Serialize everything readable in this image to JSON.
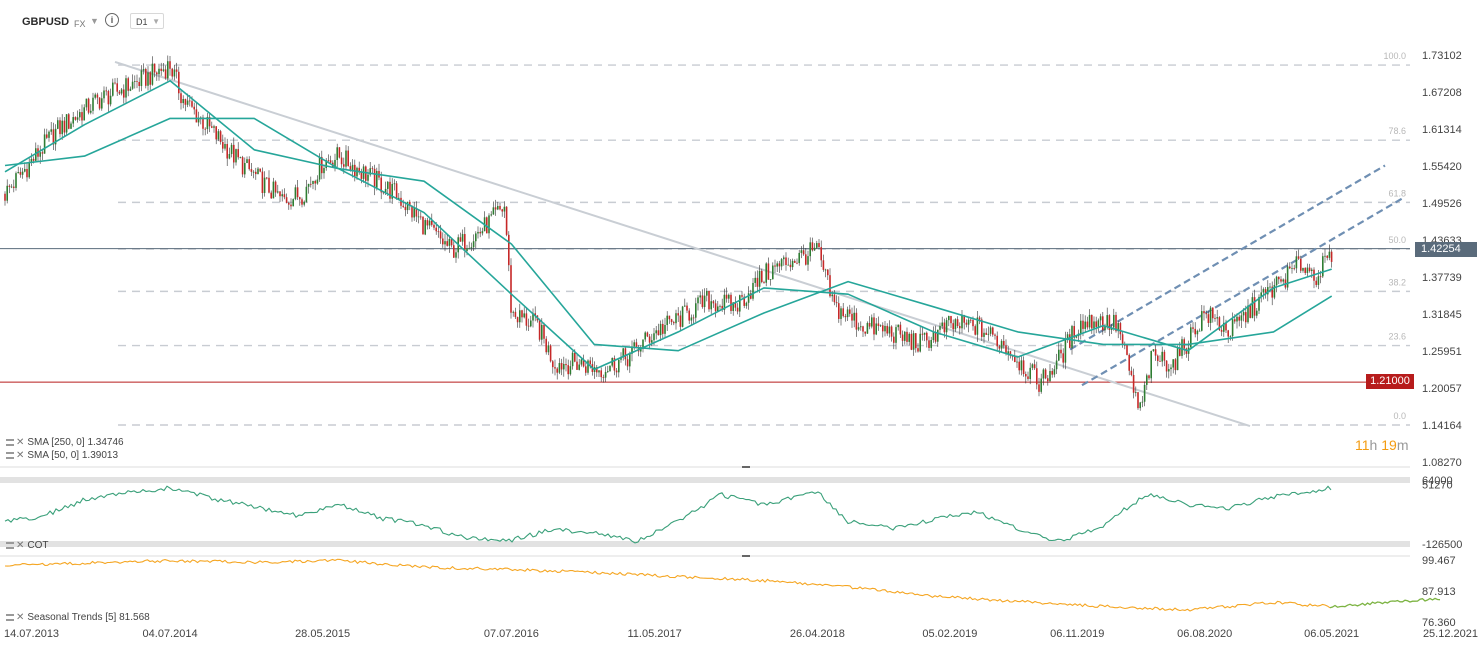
{
  "toolbar": {
    "symbol": "GBPUSD",
    "market": "FX",
    "timeframe": "D1"
  },
  "countdown": {
    "hours": "11",
    "h_label": "h",
    "minutes": "19",
    "m_label": "m"
  },
  "colors": {
    "candle_up": "#2e7d32",
    "candle_down": "#c62828",
    "sma250": "#26a69a",
    "sma50": "#26a69a",
    "trendline": "#c9ced4",
    "channel": "#6f8fb3",
    "support": "#b71c1c",
    "current_price": "#5a6b7b",
    "cot": "#3aa07a",
    "seasonal": "#f5a623",
    "seasonal_forecast": "#7cb342",
    "countdown": "#f39c12"
  },
  "chart_data": [
    {
      "type": "candlestick",
      "symbol": "GBPUSD",
      "x": [
        "2013-07-14",
        "2013-11-01",
        "2014-02-01",
        "2014-05-01",
        "2014-07-04",
        "2014-08-01",
        "2014-10-01",
        "2014-12-01",
        "2015-03-01",
        "2015-04-15",
        "2015-05-28",
        "2015-07-01",
        "2015-09-01",
        "2015-11-01",
        "2016-01-01",
        "2016-03-01",
        "2016-05-01",
        "2016-06-23",
        "2016-07-07",
        "2016-09-01",
        "2016-10-07",
        "2016-12-01",
        "2017-01-15",
        "2017-03-15",
        "2017-05-11",
        "2017-07-01",
        "2017-09-01",
        "2017-11-01",
        "2018-01-01",
        "2018-02-15",
        "2018-04-26",
        "2018-06-01",
        "2018-08-01",
        "2018-10-01",
        "2018-12-01",
        "2019-02-05",
        "2019-04-01",
        "2019-06-01",
        "2019-08-15",
        "2019-09-01",
        "2019-10-01",
        "2019-11-06",
        "2019-12-15",
        "2020-02-01",
        "2020-03-19",
        "2020-04-15",
        "2020-06-01",
        "2020-08-06",
        "2020-10-01",
        "2020-12-01",
        "2021-02-01",
        "2021-03-01",
        "2021-04-01",
        "2021-05-06"
      ],
      "close": [
        1.51,
        1.61,
        1.66,
        1.69,
        1.715,
        1.66,
        1.61,
        1.56,
        1.5,
        1.51,
        1.56,
        1.57,
        1.54,
        1.51,
        1.46,
        1.42,
        1.45,
        1.49,
        1.32,
        1.3,
        1.24,
        1.24,
        1.23,
        1.25,
        1.29,
        1.31,
        1.34,
        1.33,
        1.38,
        1.4,
        1.42,
        1.33,
        1.3,
        1.29,
        1.27,
        1.3,
        1.3,
        1.27,
        1.21,
        1.22,
        1.25,
        1.3,
        1.31,
        1.3,
        1.16,
        1.25,
        1.24,
        1.32,
        1.29,
        1.34,
        1.38,
        1.4,
        1.38,
        1.41
      ],
      "yrange": [
        1.0827,
        1.73102
      ]
    },
    {
      "type": "line",
      "series": [
        {
          "name": "SMA [250, 0]",
          "last": "1.34746",
          "x": [
            "2013-07-14",
            "2014-01-01",
            "2014-07-04",
            "2015-01-01",
            "2015-07-01",
            "2016-01-01",
            "2016-07-07",
            "2017-01-01",
            "2017-07-01",
            "2018-01-01",
            "2018-07-01",
            "2019-01-01",
            "2019-07-01",
            "2020-01-01",
            "2020-07-01",
            "2021-01-01",
            "2021-05-06"
          ],
          "y": [
            1.555,
            1.57,
            1.63,
            1.63,
            1.55,
            1.53,
            1.43,
            1.27,
            1.26,
            1.32,
            1.37,
            1.33,
            1.29,
            1.27,
            1.27,
            1.29,
            1.347
          ]
        },
        {
          "name": "SMA [50, 0]",
          "last": "1.39013",
          "x": [
            "2013-07-14",
            "2014-01-01",
            "2014-07-04",
            "2015-01-01",
            "2015-07-01",
            "2016-01-01",
            "2016-07-07",
            "2017-01-01",
            "2017-07-01",
            "2018-01-01",
            "2018-07-01",
            "2019-01-01",
            "2019-07-01",
            "2020-01-01",
            "2020-07-01",
            "2021-01-01",
            "2021-05-06"
          ],
          "y": [
            1.545,
            1.62,
            1.69,
            1.58,
            1.55,
            1.48,
            1.35,
            1.23,
            1.29,
            1.36,
            1.35,
            1.29,
            1.25,
            1.3,
            1.26,
            1.36,
            1.39
          ]
        }
      ]
    },
    {
      "type": "fibonacci",
      "levels": [
        {
          "label": "100.0",
          "value": 1.71502
        },
        {
          "label": "78.6",
          "value": 1.5953
        },
        {
          "label": "61.8",
          "value": 1.49625
        },
        {
          "label": "50.0",
          "value": 1.422
        },
        {
          "label": "38.2",
          "value": 1.3545
        },
        {
          "label": "23.6",
          "value": 1.2682
        },
        {
          "label": "0.0",
          "value": 1.14164
        }
      ]
    },
    {
      "type": "annotations",
      "support_level": "1.21000",
      "current_price": "1.42254",
      "current_price_value": 1.42254
    },
    {
      "type": "axis",
      "y_ticks": [
        "1.73102",
        "1.67208",
        "1.61314",
        "1.55420",
        "1.49526",
        "1.43633",
        "1.37739",
        "1.31845",
        "1.25951",
        "1.20057",
        "1.14164",
        "1.08270"
      ],
      "x_ticks": [
        "14.07.2013",
        "04.07.2014",
        "28.05.2015",
        "07.07.2016",
        "11.05.2017",
        "26.04.2018",
        "05.02.2019",
        "06.11.2019",
        "06.08.2020",
        "06.05.2021",
        "25.12.2021"
      ]
    },
    {
      "type": "line",
      "title": "COT",
      "y_ticks": [
        "64000",
        "51270",
        "-126500"
      ],
      "yrange": [
        -126500,
        64000
      ],
      "x": [
        "2013-07-14",
        "2013-10-01",
        "2014-01-01",
        "2014-04-01",
        "2014-07-04",
        "2014-10-01",
        "2015-01-01",
        "2015-04-01",
        "2015-07-01",
        "2015-10-01",
        "2016-01-01",
        "2016-04-01",
        "2016-07-07",
        "2016-10-01",
        "2017-01-01",
        "2017-04-01",
        "2017-07-01",
        "2017-10-01",
        "2018-01-01",
        "2018-04-26",
        "2018-07-01",
        "2018-10-01",
        "2019-01-01",
        "2019-04-01",
        "2019-07-01",
        "2019-10-01",
        "2020-01-01",
        "2020-04-01",
        "2020-07-01",
        "2020-10-01",
        "2021-01-01",
        "2021-05-06"
      ],
      "y": [
        -60000,
        -45000,
        5000,
        25000,
        40000,
        10000,
        -15000,
        -40000,
        -10000,
        -50000,
        -70000,
        -110000,
        -115000,
        -85000,
        -90000,
        -120000,
        -60000,
        20000,
        -10000,
        30000,
        -60000,
        -80000,
        -55000,
        -30000,
        -80000,
        -120000,
        -70000,
        20000,
        -10000,
        -20000,
        15000,
        40000
      ]
    },
    {
      "type": "line",
      "title": "Seasonal  Trends [5]",
      "last": "81.568",
      "y_ticks": [
        "99.467",
        "87.913",
        "76.360"
      ],
      "yrange": [
        76.36,
        99.467
      ],
      "x": [
        "2013-07-14",
        "2014-01-01",
        "2014-07-04",
        "2015-01-01",
        "2015-07-01",
        "2016-01-01",
        "2016-07-07",
        "2017-01-01",
        "2017-07-01",
        "2018-01-01",
        "2018-07-01",
        "2019-01-01",
        "2019-07-01",
        "2020-01-01",
        "2020-07-01",
        "2021-01-01",
        "2021-05-06",
        "2021-12-25"
      ],
      "y": [
        97.5,
        98.3,
        99.2,
        98.6,
        99.3,
        96.8,
        95.9,
        94.8,
        93.2,
        91.8,
        89.4,
        86.0,
        84.0,
        82.2,
        80.8,
        83.7,
        82.1,
        85.0
      ],
      "forecast_from": "2021-05-06"
    }
  ]
}
